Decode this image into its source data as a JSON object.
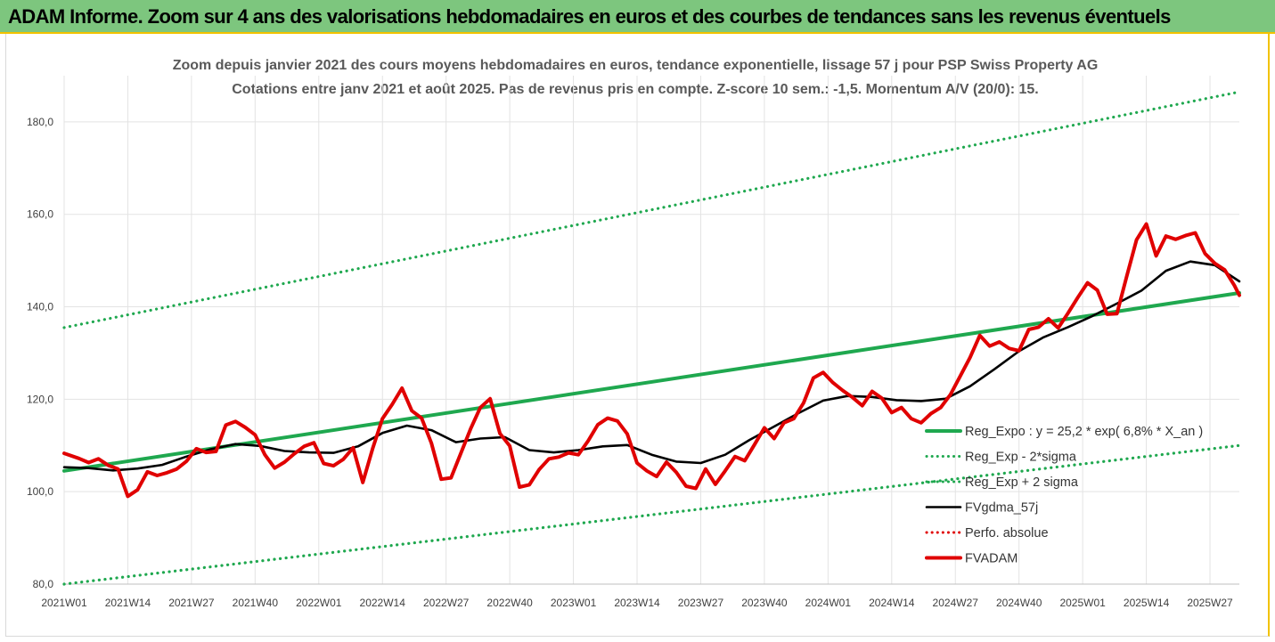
{
  "banner": {
    "title": "ADAM Informe. Zoom sur 4 ans des valorisations hebdomadaires en euros et des courbes de tendances sans les revenus éventuels"
  },
  "chart_data": {
    "type": "line",
    "title": "Zoom depuis janvier 2021 des cours moyens hebdomadaires en euros, tendance exponentielle, lissage 57 j pour PSP Swiss Property AG",
    "subtitle": "Cotations entre janv 2021 et août 2025. Pas de revenus pris en compte. Z-score 10 sem.: -1,5. Momentum A/V (20/0): 15.",
    "xlabel": "",
    "ylabel": "",
    "ylim": [
      80,
      190
    ],
    "y_ticks": [
      "80,0",
      "100,0",
      "120,0",
      "140,0",
      "160,0",
      "180,0"
    ],
    "y_tick_values": [
      80,
      100,
      120,
      140,
      160,
      180
    ],
    "x_ticks": [
      "2021W01",
      "2021W14",
      "2021W27",
      "2021W40",
      "2022W01",
      "2022W14",
      "2022W27",
      "2022W40",
      "2023W01",
      "2023W14",
      "2023W27",
      "2023W40",
      "2024W01",
      "2024W14",
      "2024W27",
      "2024W40",
      "2025W01",
      "2025W14",
      "2025W27"
    ],
    "x_tick_positions": [
      0,
      13,
      26,
      39,
      52,
      65,
      78,
      91,
      104,
      117,
      130,
      143,
      156,
      169,
      182,
      195,
      208,
      221,
      234
    ],
    "x_range": [
      0,
      240
    ],
    "grid": true,
    "legend_position": "bottom-right",
    "series": [
      {
        "name": "Reg_Expo : y = 25,2 * exp( 6,8% *  X_an )",
        "color": "#1fa84f",
        "style": "solid",
        "x": [
          0,
          240
        ],
        "values": [
          104.5,
          143
        ]
      },
      {
        "name": "Reg_Exp - 2*sigma",
        "color": "#1fa84f",
        "style": "dotted",
        "x": [
          0,
          240
        ],
        "values": [
          80,
          110
        ]
      },
      {
        "name": "Reg_Exp + 2 sigma",
        "color": "#1fa84f",
        "style": "dotted",
        "x": [
          0,
          240
        ],
        "values": [
          135.5,
          186.5
        ]
      },
      {
        "name": "FVgdma_57j",
        "color": "#000000",
        "style": "solid",
        "x": [
          0,
          5,
          10,
          15,
          20,
          25,
          30,
          35,
          40,
          45,
          50,
          55,
          60,
          65,
          70,
          75,
          80,
          85,
          90,
          95,
          100,
          105,
          110,
          115,
          120,
          125,
          130,
          135,
          140,
          145,
          150,
          155,
          160,
          165,
          170,
          175,
          180,
          185,
          190,
          195,
          200,
          205,
          210,
          215,
          220,
          225,
          230,
          235,
          240
        ],
        "values": [
          105.3,
          105.1,
          104.6,
          105.0,
          105.8,
          107.6,
          109.2,
          110.3,
          109.9,
          108.8,
          108.5,
          108.4,
          109.8,
          112.7,
          114.3,
          113.3,
          110.7,
          111.5,
          111.8,
          109.0,
          108.5,
          109.0,
          109.8,
          110.1,
          108.0,
          106.5,
          106.2,
          108.0,
          111.2,
          114.1,
          117.0,
          119.7,
          120.7,
          120.5,
          119.8,
          119.6,
          120.1,
          122.8,
          126.5,
          130.4,
          133.4,
          135.6,
          138.0,
          140.7,
          143.5,
          147.8,
          149.8,
          149.0,
          145.5
        ]
      },
      {
        "name": "Perfo. absolue",
        "color": "#e00000",
        "style": "dotted",
        "x": [],
        "values": []
      },
      {
        "name": "FVADAM",
        "color": "#e00000",
        "style": "solid",
        "x": [
          0,
          3,
          5,
          7,
          9,
          11,
          13,
          15,
          17,
          19,
          21,
          23,
          25,
          27,
          29,
          31,
          33,
          35,
          37,
          39,
          41,
          43,
          45,
          47,
          49,
          51,
          53,
          55,
          57,
          59,
          61,
          63,
          65,
          67,
          69,
          71,
          73,
          75,
          77,
          79,
          81,
          83,
          85,
          87,
          89,
          91,
          93,
          95,
          97,
          99,
          101,
          103,
          105,
          107,
          109,
          111,
          113,
          115,
          117,
          119,
          121,
          123,
          125,
          127,
          129,
          131,
          133,
          135,
          137,
          139,
          141,
          143,
          145,
          147,
          149,
          151,
          153,
          155,
          157,
          159,
          161,
          163,
          165,
          167,
          169,
          171,
          173,
          175,
          177,
          179,
          181,
          183,
          185,
          187,
          189,
          191,
          193,
          195,
          197,
          199,
          201,
          203,
          205,
          207,
          209,
          211,
          213,
          215,
          217,
          219,
          221,
          223,
          225,
          227,
          229,
          231,
          233,
          235,
          237,
          239,
          240
        ],
        "values": [
          108.3,
          107.2,
          106.3,
          107.1,
          105.7,
          104.9,
          99.0,
          100.4,
          104.3,
          103.5,
          104.1,
          104.9,
          106.6,
          109.3,
          108.5,
          108.7,
          114.4,
          115.2,
          113.9,
          112.3,
          108.0,
          105.1,
          106.4,
          108.2,
          109.8,
          110.6,
          106.1,
          105.6,
          107.0,
          109.5,
          102.0,
          109.3,
          115.8,
          118.9,
          122.4,
          117.5,
          115.9,
          110.5,
          102.7,
          103.0,
          108.3,
          113.6,
          118.2,
          120.1,
          112.6,
          109.9,
          101.0,
          101.5,
          104.8,
          107.1,
          107.5,
          108.4,
          108.0,
          111.0,
          114.5,
          115.9,
          115.3,
          112.5,
          106.2,
          104.5,
          103.3,
          106.4,
          104.2,
          101.2,
          100.7,
          104.9,
          101.6,
          104.5,
          107.6,
          106.7,
          110.2,
          113.8,
          111.5,
          114.9,
          115.8,
          119.2,
          124.6,
          125.8,
          123.6,
          121.9,
          120.4,
          118.6,
          121.7,
          120.2,
          117.1,
          118.2,
          115.8,
          114.9,
          116.9,
          118.2,
          121.0,
          125.0,
          129.0,
          133.8,
          131.5,
          132.4,
          131.0,
          130.5,
          135.1,
          135.6,
          137.4,
          135.4,
          138.6,
          142.0,
          145.2,
          143.6,
          138.4,
          138.5,
          146.6,
          154.5,
          157.9,
          151.0,
          155.3,
          154.6,
          155.4,
          156.0,
          151.5,
          149.4,
          148.0,
          144.6,
          142.5
        ]
      }
    ]
  }
}
